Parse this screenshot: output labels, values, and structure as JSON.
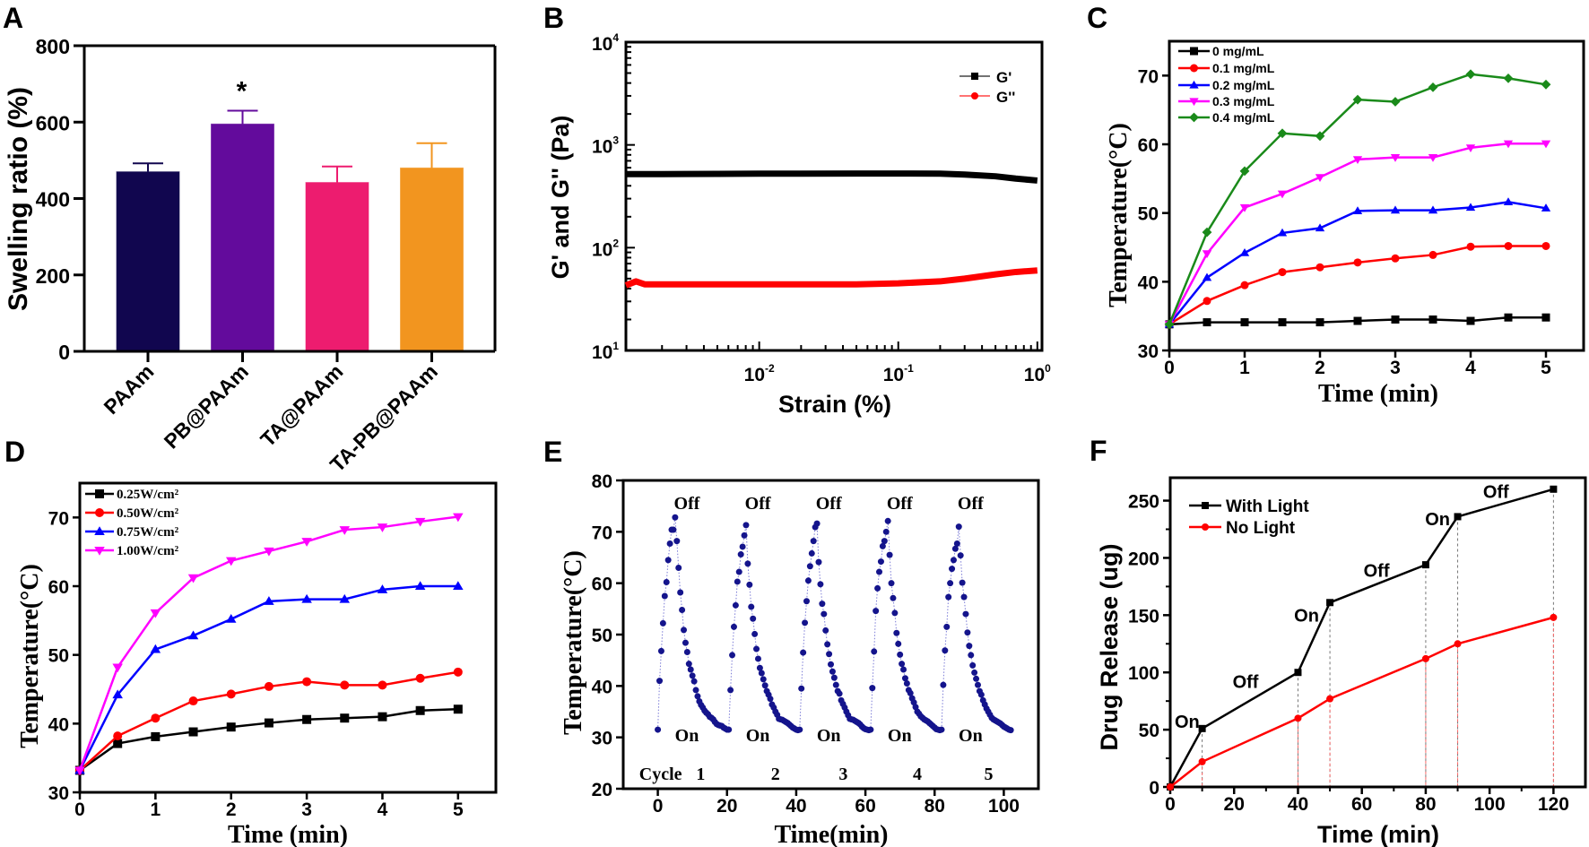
{
  "figure": {
    "panel_labels": [
      "A",
      "B",
      "C",
      "D",
      "E",
      "F"
    ]
  },
  "chart_data": [
    {
      "panel": "A",
      "type": "bar",
      "categories": [
        "PAAm",
        "PB@PAAm",
        "TA@PAAm",
        "TA-PB@PAAm"
      ],
      "values": [
        470,
        595,
        442,
        480
      ],
      "errors": [
        22,
        35,
        42,
        65
      ],
      "colors": [
        "#11064f",
        "#630b9c",
        "#ed1c6f",
        "#f2951f"
      ],
      "annotations": [
        {
          "text": "*",
          "category": "PB@PAAm"
        }
      ],
      "xlabel": "",
      "ylabel": "Swelling ratio (%)",
      "ylim": [
        0,
        800
      ],
      "yticks": [
        0,
        200,
        400,
        600,
        800
      ],
      "ytick_labels": [
        "0",
        "200",
        "400",
        "600",
        "800"
      ],
      "grid": false
    },
    {
      "panel": "B",
      "type": "line",
      "xscale": "log",
      "yscale": "log",
      "xlim": [
        0.0011,
        1.08
      ],
      "ylim": [
        10,
        10000
      ],
      "xticks": [
        0.01,
        0.1,
        1
      ],
      "xtick_labels": [
        [
          "10",
          "-2"
        ],
        [
          "10",
          "-1"
        ],
        [
          "10",
          "0"
        ]
      ],
      "yticks": [
        10,
        100,
        1000,
        10000
      ],
      "ytick_labels": [
        [
          "10",
          "1"
        ],
        [
          "10",
          "2"
        ],
        [
          "10",
          "3"
        ],
        [
          "10",
          "4"
        ]
      ],
      "xlabel": "Strain (%)",
      "ylabel": "G' and G'' (Pa)",
      "legend_position": "top-right",
      "grid": false,
      "series": [
        {
          "name": "G'",
          "color": "#000000",
          "marker": "square",
          "x": [
            0.0011,
            0.0013,
            0.002,
            0.005,
            0.01,
            0.02,
            0.05,
            0.1,
            0.2,
            0.3,
            0.5,
            0.7,
            1.0
          ],
          "y": [
            520,
            520,
            520,
            522,
            525,
            525,
            526,
            527,
            525,
            515,
            495,
            470,
            450
          ]
        },
        {
          "name": "G''",
          "color": "#ff0000",
          "marker": "circle",
          "x": [
            0.0011,
            0.0013,
            0.0015,
            0.002,
            0.005,
            0.01,
            0.02,
            0.05,
            0.1,
            0.2,
            0.3,
            0.5,
            0.7,
            1.0
          ],
          "y": [
            43,
            47,
            44,
            44,
            44,
            44,
            44,
            44,
            45,
            47,
            50,
            55,
            58,
            60
          ]
        }
      ]
    },
    {
      "panel": "C",
      "type": "line",
      "x": [
        0,
        0.5,
        1,
        1.5,
        2,
        2.5,
        3,
        3.5,
        4,
        4.5,
        5
      ],
      "xlim": [
        0,
        5.5
      ],
      "ylim": [
        30,
        75
      ],
      "xticks": [
        0,
        1,
        2,
        3,
        4,
        5
      ],
      "xtick_labels": [
        "0",
        "1",
        "2",
        "3",
        "4",
        "5"
      ],
      "yticks": [
        30,
        40,
        50,
        60,
        70
      ],
      "ytick_labels": [
        "30",
        "40",
        "50",
        "60",
        "70"
      ],
      "xlabel": "Time (min)",
      "ylabel": "Temperature(°C)",
      "legend_position": "top-left",
      "grid": false,
      "series": [
        {
          "name": "0 mg/mL",
          "color": "#000000",
          "marker": "square",
          "y": [
            33.8,
            34.1,
            34.1,
            34.1,
            34.1,
            34.3,
            34.5,
            34.5,
            34.3,
            34.8,
            34.8
          ]
        },
        {
          "name": "0.1 mg/mL",
          "color": "#ff0000",
          "marker": "circle",
          "y": [
            33.8,
            37.2,
            39.5,
            41.4,
            42.1,
            42.8,
            43.4,
            43.9,
            45.1,
            45.2,
            45.2
          ]
        },
        {
          "name": "0.2 mg/mL",
          "color": "#0000ff",
          "marker": "triangle-up",
          "y": [
            33.8,
            40.6,
            44.2,
            47.1,
            47.8,
            50.3,
            50.4,
            50.4,
            50.8,
            51.6,
            50.7
          ]
        },
        {
          "name": "0.3 mg/mL",
          "color": "#ff00ff",
          "marker": "triangle-down",
          "y": [
            33.8,
            44.1,
            50.8,
            52.8,
            55.2,
            57.8,
            58.1,
            58.1,
            59.5,
            60.1,
            60.1
          ]
        },
        {
          "name": "0.4 mg/mL",
          "color": "#1a8a1a",
          "marker": "diamond",
          "y": [
            33.8,
            47.2,
            56.1,
            61.6,
            61.2,
            66.5,
            66.2,
            68.3,
            70.2,
            69.6,
            68.7
          ]
        }
      ]
    },
    {
      "panel": "D",
      "type": "line",
      "x": [
        0,
        0.5,
        1,
        1.5,
        2,
        2.5,
        3,
        3.5,
        4,
        4.5,
        5
      ],
      "xlim": [
        0,
        5.5
      ],
      "ylim": [
        30,
        75
      ],
      "xticks": [
        0,
        1,
        2,
        3,
        4,
        5
      ],
      "xtick_labels": [
        "0",
        "1",
        "2",
        "3",
        "4",
        "5"
      ],
      "yticks": [
        30,
        40,
        50,
        60,
        70
      ],
      "ytick_labels": [
        "30",
        "40",
        "50",
        "60",
        "70"
      ],
      "xlabel": "Time (min)",
      "ylabel": "Temperature(°C)",
      "legend_position": "top-left",
      "grid": false,
      "series": [
        {
          "name": "0.25W/cm²",
          "color": "#000000",
          "marker": "square",
          "y": [
            33.2,
            37.1,
            38.1,
            38.8,
            39.5,
            40.1,
            40.6,
            40.8,
            41.0,
            41.9,
            42.1
          ]
        },
        {
          "name": "0.50W/cm²",
          "color": "#ff0000",
          "marker": "circle",
          "y": [
            33.2,
            38.2,
            40.8,
            43.3,
            44.3,
            45.4,
            46.1,
            45.6,
            45.6,
            46.6,
            47.5
          ]
        },
        {
          "name": "0.75W/cm²",
          "color": "#0000ff",
          "marker": "triangle-up",
          "y": [
            33.2,
            44.2,
            50.8,
            52.8,
            55.2,
            57.8,
            58.1,
            58.1,
            59.5,
            60.0,
            60.0
          ]
        },
        {
          "name": "1.00W/cm²",
          "color": "#ff00ff",
          "marker": "triangle-down",
          "y": [
            33.2,
            48.2,
            56.1,
            61.2,
            63.7,
            65.1,
            66.5,
            68.2,
            68.6,
            69.4,
            70.1
          ]
        }
      ]
    },
    {
      "panel": "E",
      "type": "scatter",
      "xlim": [
        -10,
        110
      ],
      "ylim": [
        20,
        80
      ],
      "xticks": [
        0,
        20,
        40,
        60,
        80,
        100
      ],
      "xtick_labels": [
        "0",
        "20",
        "40",
        "60",
        "80",
        "100"
      ],
      "yticks": [
        20,
        30,
        40,
        50,
        60,
        70,
        80
      ],
      "ytick_labels": [
        "20",
        "30",
        "40",
        "50",
        "60",
        "70",
        "80"
      ],
      "xlabel": "Time(min)",
      "ylabel": "Temperature(°C)",
      "grid": false,
      "color": "#14148c",
      "interval_min": 0.5,
      "cycles": [
        {
          "start_min": 0,
          "temps": [
            31.5,
            41.0,
            46.8,
            52.2,
            57.5,
            60.2,
            64.5,
            67.7,
            70.4,
            70.4,
            72.8,
            68.2,
            63.0,
            58.2,
            54.8,
            50.9,
            48.4,
            46.6,
            44.3,
            43.2,
            42.0,
            40.9,
            39.2,
            38.0,
            37.0,
            36.3,
            35.8,
            35.2,
            34.8,
            34.5,
            34.0,
            33.8,
            33.5,
            33.0,
            32.6,
            32.4,
            32.3,
            32.2,
            31.9,
            31.7,
            31.5
          ]
        },
        {
          "start_min": 20.5,
          "temps": [
            31.5,
            39.2,
            46.0,
            51.5,
            55.7,
            60.3,
            62.2,
            65.6,
            67.1,
            69.3,
            71.3,
            63.8,
            59.7,
            55.4,
            53.1,
            50.1,
            47.2,
            45.3,
            43.5,
            42.5,
            41.3,
            40.1,
            39.0,
            38.3,
            37.5,
            36.4,
            35.8,
            35.0,
            34.4,
            33.6,
            33.5,
            33.4,
            33.2,
            33.0,
            32.8,
            32.5,
            32.2,
            31.9,
            31.7,
            31.5,
            31.4
          ]
        },
        {
          "start_min": 41,
          "temps": [
            31.5,
            39.5,
            46.5,
            52.3,
            56.5,
            60.5,
            63.3,
            65.8,
            68.2,
            70.9,
            71.6,
            64.1,
            59.8,
            56.0,
            54.0,
            50.8,
            48.1,
            46.2,
            44.2,
            42.8,
            41.6,
            40.2,
            39.0,
            38.5,
            37.2,
            36.5,
            35.8,
            35.0,
            34.3,
            33.6,
            33.5,
            33.4,
            33.2,
            33.0,
            32.8,
            32.5,
            32.1,
            31.8,
            31.6,
            31.5,
            31.4
          ]
        },
        {
          "start_min": 61.5,
          "temps": [
            31.5,
            39.6,
            46.7,
            54.6,
            59.0,
            62.2,
            64.2,
            67.2,
            68.2,
            70.0,
            72.1,
            65.5,
            60.0,
            57.1,
            54.2,
            50.3,
            48.2,
            46.1,
            44.3,
            43.2,
            41.5,
            40.5,
            39.2,
            38.6,
            37.6,
            36.8,
            35.9,
            35.0,
            34.6,
            34.1,
            33.8,
            33.5,
            33.3,
            33.1,
            32.8,
            32.5,
            32.2,
            31.9,
            31.6,
            31.5,
            31.4
          ]
        },
        {
          "start_min": 82,
          "temps": [
            31.5,
            40.2,
            46.9,
            51.5,
            57.3,
            60.0,
            62.8,
            64.5,
            66.7,
            67.7,
            71.0,
            65.4,
            60.1,
            57.3,
            54.0,
            50.4,
            47.8,
            46.0,
            44.0,
            42.6,
            41.4,
            40.2,
            39.0,
            38.3,
            37.2,
            36.4,
            35.6,
            35.0,
            34.4,
            33.8,
            33.5,
            33.3,
            33.1,
            32.9,
            32.7,
            32.4,
            32.1,
            31.9,
            31.7,
            31.5,
            31.4
          ]
        }
      ],
      "peak_labels": [
        "Off",
        "Off",
        "Off",
        "Off",
        "Off"
      ],
      "base_labels": [
        "On",
        "On",
        "On",
        "On",
        "On"
      ],
      "cycle_label": "Cycle",
      "cycle_numbers": [
        "1",
        "2",
        "3",
        "4",
        "5"
      ]
    },
    {
      "panel": "F",
      "type": "line",
      "xlim": [
        0,
        130
      ],
      "ylim": [
        0,
        270
      ],
      "xticks": [
        0,
        20,
        40,
        60,
        80,
        100,
        120
      ],
      "xtick_labels": [
        "0",
        "20",
        "40",
        "60",
        "80",
        "100",
        "120"
      ],
      "yticks": [
        0,
        50,
        100,
        150,
        200,
        250
      ],
      "ytick_labels": [
        "0",
        "50",
        "100",
        "150",
        "200",
        "250"
      ],
      "xlabel": "Time (min)",
      "ylabel": "Drug Release (ug)",
      "legend_position": "top-left",
      "grid": false,
      "series": [
        {
          "name": "With Light",
          "color": "#000000",
          "marker": "square",
          "x": [
            0,
            10,
            40,
            50,
            80,
            90,
            120
          ],
          "y": [
            0,
            51,
            100,
            161,
            194,
            236,
            260
          ]
        },
        {
          "name": "No Light",
          "color": "#ff0000",
          "marker": "circle",
          "x": [
            0,
            10,
            40,
            50,
            80,
            90,
            120
          ],
          "y": [
            0,
            22,
            60,
            77,
            112,
            125,
            148
          ]
        }
      ],
      "annotations": [
        "On",
        "Off",
        "On",
        "Off",
        "On",
        "Off"
      ]
    }
  ]
}
